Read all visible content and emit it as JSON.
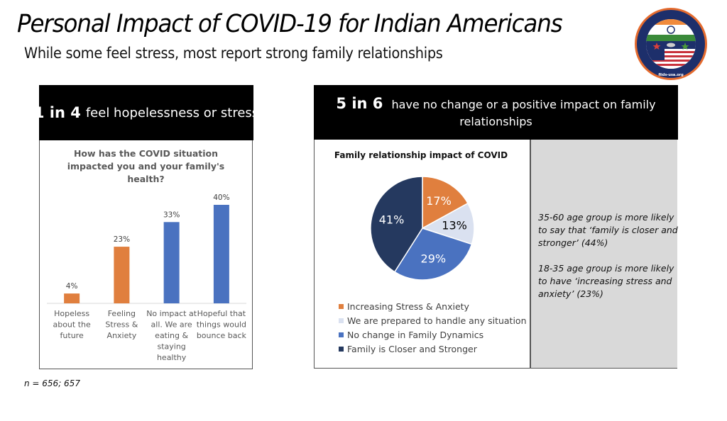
{
  "header": {
    "title": "Personal Impact of COVID-19 for Indian Americans",
    "subtitle": "While some feel stress, most report strong family relationships",
    "logo": {
      "name": "foundation-logo-icon",
      "ring_text": "Foundation for India and Indian Diaspora Studies",
      "url_text": "fiids-usa.org"
    }
  },
  "left_panel": {
    "headline_big": "1 in 4",
    "headline_rest": "feel hopelessness or stress"
  },
  "right_panel": {
    "headline_big": "5 in 6",
    "headline_rest": "have no change or a positive impact on family relationships",
    "notes": [
      "35-60 age group is more likely to say that ‘family is closer and stronger’ (44%)",
      "18-35 age group is more likely to have ‘increasing stress and anxiety’ (23%)"
    ]
  },
  "footnote": "n = 656; 657",
  "colors": {
    "orange": "#e07f3e",
    "light": "#dae1f0",
    "blue": "#4a72c0",
    "navy": "#25395f"
  },
  "chart_data": [
    {
      "type": "bar",
      "title": "How has the COVID situation impacted you and your family's health?",
      "title_lines": [
        "How has the COVID situation",
        "impacted you and your family's",
        "health?"
      ],
      "categories": [
        "Hopeless about the future",
        "Feeling Stress & Anxiety",
        "No impact at all. We are eating & staying healthy",
        "Hopeful that things would bounce back"
      ],
      "category_lines": [
        [
          "Hopeless",
          "about the",
          "future"
        ],
        [
          "Feeling",
          "Stress &",
          "Anxiety"
        ],
        [
          "No impact at",
          "all. We are",
          "eating &",
          "staying",
          "healthy"
        ],
        [
          "Hopeful that",
          "things would",
          "bounce back"
        ]
      ],
      "values": [
        4,
        23,
        33,
        40
      ],
      "labels": [
        "4%",
        "23%",
        "33%",
        "40%"
      ],
      "bar_colors": [
        "#e07f3e",
        "#e07f3e",
        "#4a72c0",
        "#4a72c0"
      ],
      "unit": "%",
      "ylim": [
        0,
        40
      ],
      "grid": false,
      "xlabel": "",
      "ylabel": ""
    },
    {
      "type": "pie",
      "title": "Family relationship impact of COVID",
      "categories": [
        "Increasing Stress & Anxiety",
        "We are prepared to handle any situation",
        "No change in Family Dynamics",
        "Family is Closer and Stronger"
      ],
      "values": [
        17,
        13,
        29,
        41
      ],
      "labels": [
        "17%",
        "13%",
        "29%",
        "41%"
      ],
      "slice_colors": [
        "#e07f3e",
        "#dae1f0",
        "#4a72c0",
        "#25395f"
      ],
      "label_colors": [
        "#ffffff",
        "#000000",
        "#ffffff",
        "#ffffff"
      ],
      "legend_position": "bottom-left"
    }
  ]
}
